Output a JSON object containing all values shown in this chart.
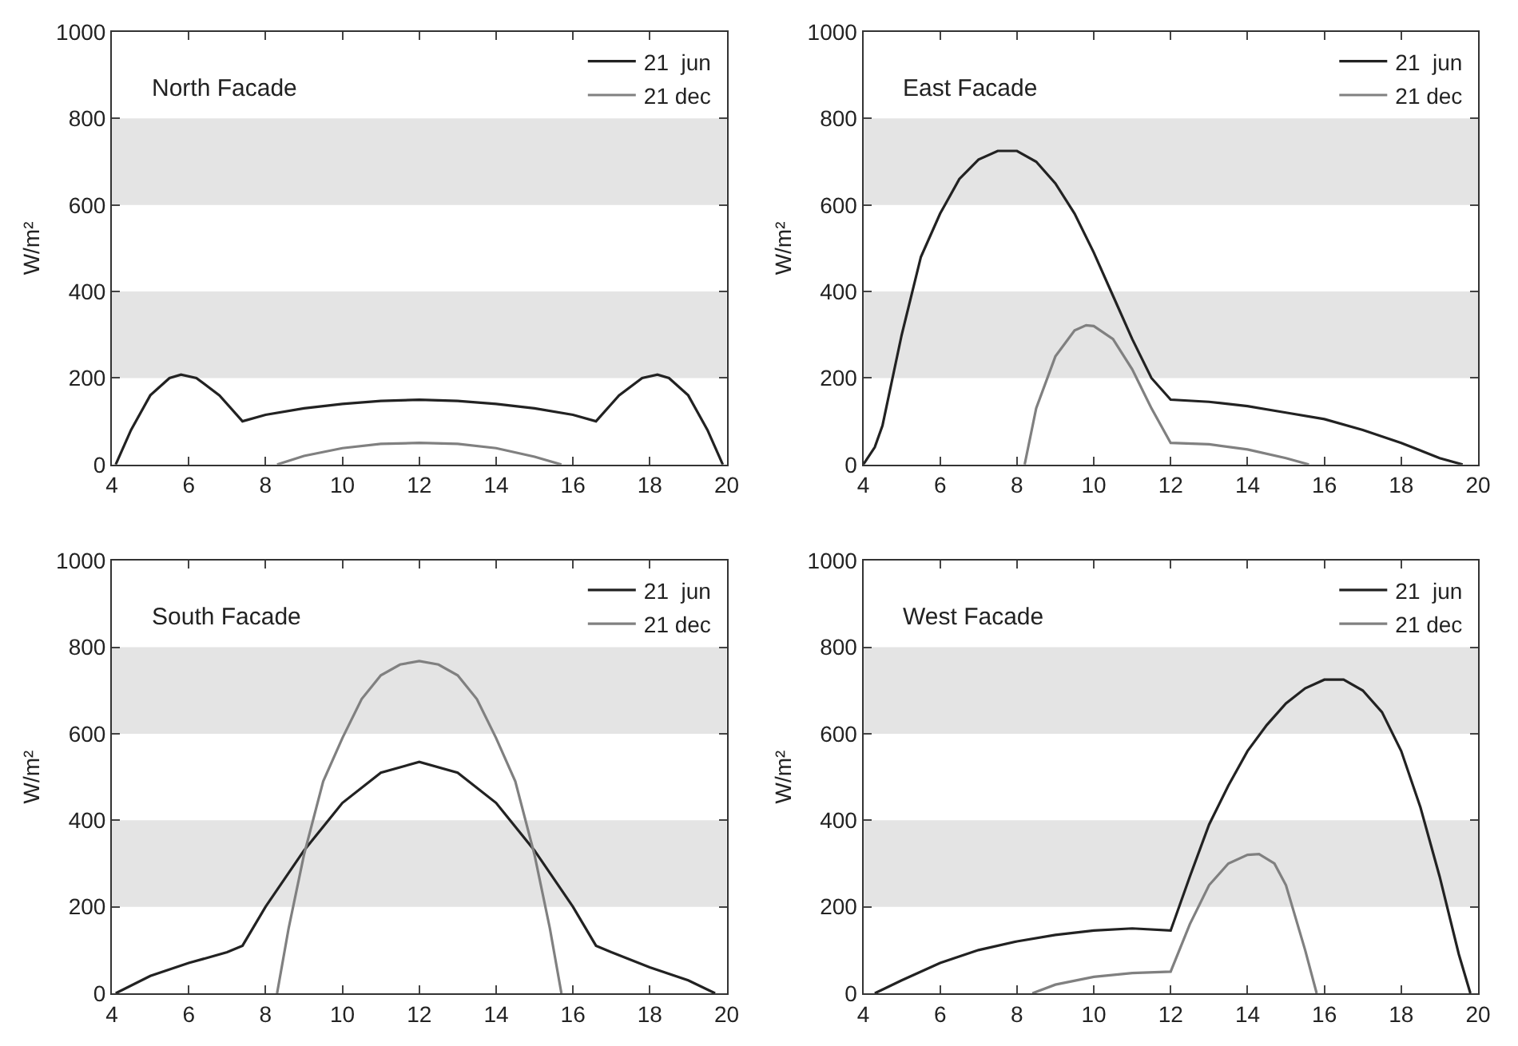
{
  "chart_data": [
    {
      "type": "line",
      "title": "North Facade",
      "ylabel": "W/m²",
      "xlim": [
        4,
        20
      ],
      "ylim": [
        0,
        1000
      ],
      "xticks": [
        4,
        6,
        8,
        10,
        12,
        14,
        16,
        18,
        20
      ],
      "yticks": [
        0,
        200,
        400,
        600,
        800,
        1000
      ],
      "legend": "top right",
      "grid": false,
      "bands": [
        {
          "axis": "y",
          "from": 200,
          "to": 400,
          "color": "#e4e4e4"
        },
        {
          "axis": "y",
          "from": 600,
          "to": 800,
          "color": "#e4e4e4"
        }
      ],
      "series": [
        {
          "name": "21  jun",
          "color": "#222222",
          "x": [
            4.1,
            4.5,
            5,
            5.5,
            5.8,
            6.2,
            6.8,
            7.4,
            8,
            9,
            10,
            11,
            12,
            13,
            14,
            15,
            16,
            16.6,
            17.2,
            17.8,
            18.2,
            18.5,
            19,
            19.5,
            19.9
          ],
          "values": [
            0,
            80,
            160,
            200,
            208,
            200,
            160,
            100,
            115,
            130,
            140,
            147,
            150,
            147,
            140,
            130,
            115,
            100,
            160,
            200,
            208,
            200,
            160,
            80,
            0
          ]
        },
        {
          "name": "21 dec",
          "color": "#808080",
          "x": [
            8.3,
            9,
            10,
            11,
            12,
            13,
            14,
            15,
            15.7
          ],
          "values": [
            0,
            20,
            38,
            48,
            50,
            48,
            38,
            18,
            0
          ]
        }
      ]
    },
    {
      "type": "line",
      "title": "East Facade",
      "ylabel": "W/m²",
      "xlim": [
        4,
        20
      ],
      "ylim": [
        0,
        1000
      ],
      "xticks": [
        4,
        6,
        8,
        10,
        12,
        14,
        16,
        18,
        20
      ],
      "yticks": [
        0,
        200,
        400,
        600,
        800,
        1000
      ],
      "legend": "top right",
      "grid": false,
      "bands": [
        {
          "axis": "y",
          "from": 200,
          "to": 400,
          "color": "#e4e4e4"
        },
        {
          "axis": "y",
          "from": 600,
          "to": 800,
          "color": "#e4e4e4"
        }
      ],
      "series": [
        {
          "name": "21  jun",
          "color": "#222222",
          "x": [
            4,
            4.3,
            4.5,
            5,
            5.5,
            6,
            6.5,
            7,
            7.5,
            8,
            8.5,
            9,
            9.5,
            10,
            10.5,
            11,
            11.5,
            12,
            13,
            14,
            15,
            16,
            17,
            18,
            19,
            19.6
          ],
          "values": [
            0,
            40,
            90,
            300,
            480,
            580,
            660,
            705,
            725,
            725,
            700,
            650,
            580,
            490,
            390,
            290,
            200,
            150,
            145,
            135,
            120,
            105,
            80,
            50,
            15,
            0
          ]
        },
        {
          "name": "21 dec",
          "color": "#808080",
          "x": [
            8.2,
            8.5,
            9,
            9.5,
            9.8,
            10,
            10.5,
            11,
            11.5,
            12,
            13,
            14,
            15,
            15.6
          ],
          "values": [
            0,
            130,
            250,
            310,
            322,
            320,
            290,
            220,
            130,
            50,
            47,
            35,
            15,
            0
          ]
        }
      ]
    },
    {
      "type": "line",
      "title": "South Facade",
      "ylabel": "W/m²",
      "xlim": [
        4,
        20
      ],
      "ylim": [
        0,
        1000
      ],
      "xticks": [
        4,
        6,
        8,
        10,
        12,
        14,
        16,
        18,
        20
      ],
      "yticks": [
        0,
        200,
        400,
        600,
        800,
        1000
      ],
      "legend": "top right",
      "grid": false,
      "bands": [
        {
          "axis": "y",
          "from": 200,
          "to": 400,
          "color": "#e4e4e4"
        },
        {
          "axis": "y",
          "from": 600,
          "to": 800,
          "color": "#e4e4e4"
        }
      ],
      "series": [
        {
          "name": "21  jun",
          "color": "#222222",
          "x": [
            4.1,
            5,
            6,
            7,
            7.4,
            8,
            9,
            10,
            11,
            12,
            13,
            14,
            15,
            16,
            16.6,
            17,
            18,
            19,
            19.7
          ],
          "values": [
            0,
            40,
            70,
            95,
            110,
            200,
            330,
            440,
            510,
            535,
            510,
            440,
            330,
            200,
            110,
            95,
            60,
            30,
            0
          ]
        },
        {
          "name": "21 dec",
          "color": "#808080",
          "x": [
            8.3,
            8.6,
            9,
            9.5,
            10,
            10.5,
            11,
            11.5,
            12,
            12.5,
            13,
            13.5,
            14,
            14.5,
            15,
            15.4,
            15.7
          ],
          "values": [
            0,
            150,
            320,
            490,
            590,
            680,
            735,
            760,
            768,
            760,
            735,
            680,
            590,
            490,
            320,
            150,
            0
          ]
        }
      ]
    },
    {
      "type": "line",
      "title": "West Facade",
      "ylabel": "W/m²",
      "xlim": [
        4,
        20
      ],
      "ylim": [
        0,
        1000
      ],
      "xticks": [
        4,
        6,
        8,
        10,
        12,
        14,
        16,
        18,
        20
      ],
      "yticks": [
        0,
        200,
        400,
        600,
        800,
        1000
      ],
      "legend": "top right",
      "grid": false,
      "bands": [
        {
          "axis": "y",
          "from": 200,
          "to": 400,
          "color": "#e4e4e4"
        },
        {
          "axis": "y",
          "from": 600,
          "to": 800,
          "color": "#e4e4e4"
        }
      ],
      "series": [
        {
          "name": "21  jun",
          "color": "#222222",
          "x": [
            4.3,
            5,
            6,
            7,
            8,
            9,
            10,
            11,
            12,
            12.5,
            13,
            13.5,
            14,
            14.5,
            15,
            15.5,
            16,
            16.5,
            17,
            17.5,
            18,
            18.5,
            19,
            19.5,
            19.8
          ],
          "values": [
            0,
            30,
            70,
            100,
            120,
            135,
            145,
            150,
            145,
            270,
            390,
            480,
            560,
            620,
            670,
            705,
            725,
            725,
            700,
            650,
            560,
            430,
            270,
            90,
            0
          ]
        },
        {
          "name": "21 dec",
          "color": "#808080",
          "x": [
            8.4,
            9,
            10,
            11,
            12,
            12.5,
            13,
            13.5,
            14,
            14.3,
            14.7,
            15,
            15.5,
            15.8
          ],
          "values": [
            0,
            20,
            38,
            47,
            50,
            160,
            250,
            300,
            320,
            322,
            300,
            250,
            100,
            0
          ]
        }
      ]
    }
  ]
}
